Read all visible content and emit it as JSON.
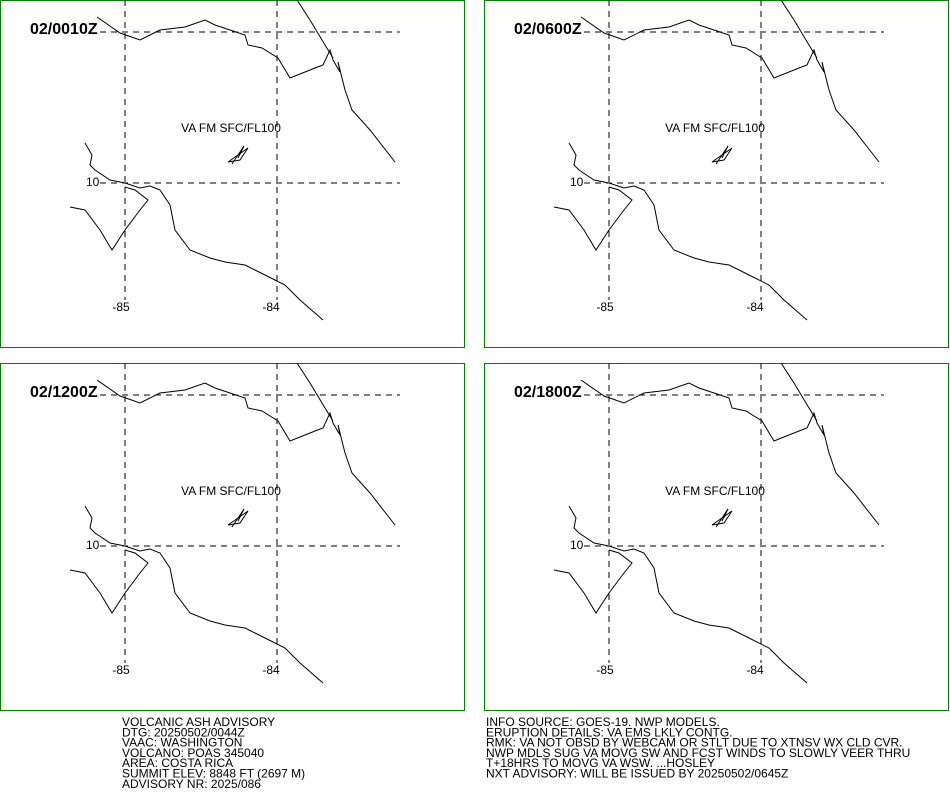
{
  "panels": [
    {
      "time": "02/0010Z",
      "layer": "VA FM SFC/FL100",
      "lat_label": "10",
      "lon_labels": [
        "-85",
        "-84"
      ]
    },
    {
      "time": "02/0600Z",
      "layer": "VA FM SFC/FL100",
      "lat_label": "10",
      "lon_labels": [
        "-85",
        "-84"
      ]
    },
    {
      "time": "02/1200Z",
      "layer": "VA FM SFC/FL100",
      "lat_label": "10",
      "lon_labels": [
        "-85",
        "-84"
      ]
    },
    {
      "time": "02/1800Z",
      "layer": "VA FM SFC/FL100",
      "lat_label": "10",
      "lon_labels": [
        "-85",
        "-84"
      ]
    }
  ],
  "advisory_left": [
    "VOLCANIC ASH ADVISORY",
    "DTG: 20250502/0044Z",
    "VAAC: WASHINGTON",
    "VOLCANO: POAS 345040",
    "AREA: COSTA RICA",
    "SUMMIT ELEV: 8848 FT (2697 M)",
    "ADVISORY NR: 2025/086"
  ],
  "advisory_right": [
    "INFO SOURCE: GOES-19. NWP MODELS.",
    "ERUPTION DETAILS: VA EMS LKLY CONTG.",
    "RMK: VA NOT OBSD BY WEBCAM OR STLT DUE TO XTNSV WX CLD CVR.",
    "NWP MDLS SUG VA MOVG SW AND FCST WINDS TO SLOWLY VEER THRU",
    "T+18HRS TO MOVG VA WSW. ...HOSLEY",
    "NXT ADVISORY: WILL BE ISSUED BY 20250502/0645Z"
  ]
}
